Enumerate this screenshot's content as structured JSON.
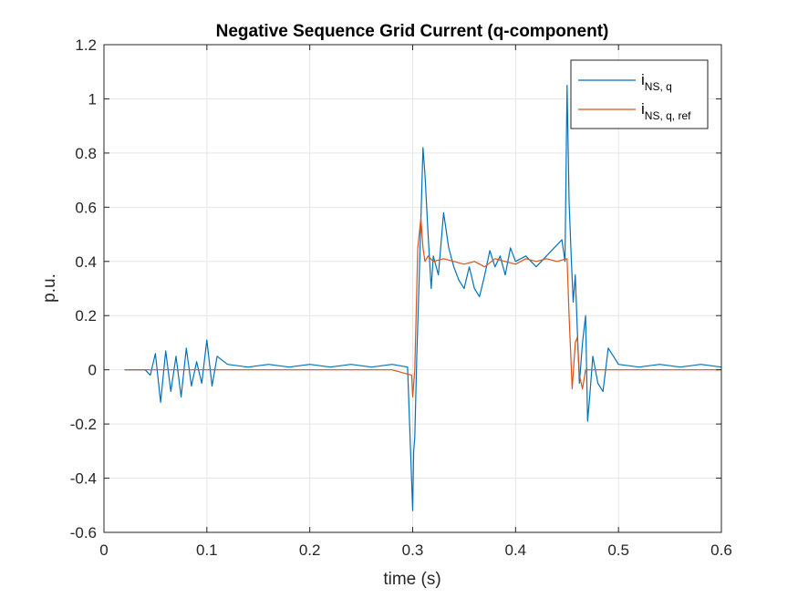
{
  "chart_data": {
    "type": "line",
    "title": "Negative Sequence Grid Current (q-component)",
    "xlabel": "time (s)",
    "ylabel": "p.u.",
    "xlim": [
      0,
      0.6
    ],
    "ylim": [
      -0.6,
      1.2
    ],
    "xticks": [
      0,
      0.1,
      0.2,
      0.3,
      0.4,
      0.5,
      0.6
    ],
    "yticks": [
      -0.6,
      -0.4,
      -0.2,
      0,
      0.2,
      0.4,
      0.6,
      0.8,
      1,
      1.2
    ],
    "grid": true,
    "legend_position": "top-right",
    "colors": {
      "series1": "#0072BD",
      "series2": "#D95319",
      "axis": "#262626",
      "grid": "#e6e6e6"
    },
    "series": [
      {
        "name": "i_{NS, q}",
        "legend_main": "i",
        "legend_sub": "NS, q",
        "x": [
          0.02,
          0.04,
          0.045,
          0.05,
          0.055,
          0.06,
          0.065,
          0.07,
          0.075,
          0.08,
          0.085,
          0.09,
          0.095,
          0.1,
          0.105,
          0.11,
          0.12,
          0.14,
          0.16,
          0.18,
          0.2,
          0.22,
          0.24,
          0.26,
          0.28,
          0.295,
          0.3,
          0.301,
          0.302,
          0.304,
          0.306,
          0.308,
          0.31,
          0.312,
          0.315,
          0.318,
          0.32,
          0.325,
          0.33,
          0.335,
          0.34,
          0.345,
          0.35,
          0.355,
          0.36,
          0.365,
          0.37,
          0.375,
          0.38,
          0.385,
          0.39,
          0.395,
          0.4,
          0.41,
          0.42,
          0.43,
          0.44,
          0.445,
          0.448,
          0.45,
          0.452,
          0.454,
          0.456,
          0.458,
          0.46,
          0.462,
          0.465,
          0.468,
          0.47,
          0.472,
          0.475,
          0.48,
          0.485,
          0.49,
          0.5,
          0.52,
          0.54,
          0.56,
          0.58,
          0.6
        ],
        "y": [
          0,
          0,
          -0.02,
          0.06,
          -0.12,
          0.07,
          -0.08,
          0.05,
          -0.1,
          0.08,
          -0.06,
          0.03,
          -0.05,
          0.11,
          -0.06,
          0.05,
          0.02,
          0.01,
          0.02,
          0.01,
          0.02,
          0.01,
          0.02,
          0.01,
          0.02,
          0.01,
          -0.52,
          -0.3,
          -0.25,
          0.05,
          0.3,
          0.55,
          0.82,
          0.72,
          0.5,
          0.3,
          0.42,
          0.35,
          0.58,
          0.45,
          0.38,
          0.33,
          0.3,
          0.38,
          0.3,
          0.27,
          0.35,
          0.44,
          0.38,
          0.42,
          0.35,
          0.45,
          0.4,
          0.42,
          0.38,
          0.42,
          0.46,
          0.48,
          0.4,
          1.05,
          0.62,
          0.42,
          0.25,
          0.35,
          0.15,
          -0.05,
          0.1,
          0.2,
          -0.19,
          -0.1,
          0.05,
          -0.05,
          -0.08,
          0.08,
          0.02,
          0.01,
          0.02,
          0.01,
          0.02,
          0.01
        ]
      },
      {
        "name": "i_{NS, q, ref}",
        "legend_main": "i",
        "legend_sub": "NS, q, ref",
        "x": [
          0.02,
          0.1,
          0.2,
          0.28,
          0.299,
          0.3,
          0.302,
          0.305,
          0.308,
          0.31,
          0.312,
          0.315,
          0.32,
          0.33,
          0.34,
          0.35,
          0.36,
          0.37,
          0.38,
          0.39,
          0.4,
          0.41,
          0.42,
          0.43,
          0.44,
          0.45,
          0.452,
          0.455,
          0.458,
          0.46,
          0.462,
          0.465,
          0.468,
          0.47,
          0.48,
          0.5,
          0.6
        ],
        "y": [
          0,
          0,
          0,
          0,
          -0.02,
          -0.1,
          0.0,
          0.45,
          0.56,
          0.45,
          0.4,
          0.42,
          0.4,
          0.41,
          0.4,
          0.39,
          0.4,
          0.38,
          0.41,
          0.4,
          0.39,
          0.41,
          0.4,
          0.41,
          0.4,
          0.41,
          0.2,
          -0.07,
          0.1,
          0.12,
          -0.02,
          -0.07,
          0.0,
          0.0,
          0.0,
          0.0,
          0.0
        ]
      }
    ]
  }
}
